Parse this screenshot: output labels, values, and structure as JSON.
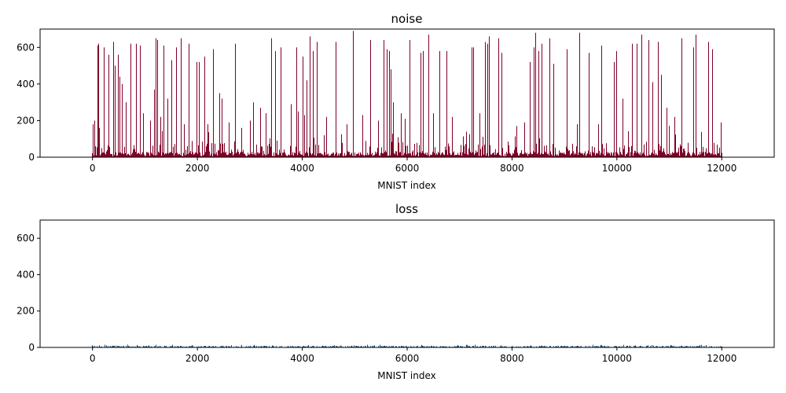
{
  "chart_data": [
    {
      "type": "bar",
      "title": "noise",
      "xlabel": "MNIST index",
      "ylabel": "",
      "xlim": [
        -1000,
        13000
      ],
      "ylim": [
        0,
        700
      ],
      "xticks": [
        0,
        2000,
        4000,
        6000,
        8000,
        10000,
        12000
      ],
      "xtick_labels": [
        "0",
        "2000",
        "4000",
        "6000",
        "8000",
        "10000",
        "12000"
      ],
      "yticks": [
        0,
        200,
        400,
        600
      ],
      "ytick_labels": [
        "0",
        "200",
        "400",
        "600"
      ],
      "grid": false,
      "color": "#7f0029",
      "n_points": 12000,
      "spikes": [
        {
          "x": 10,
          "y": 180
        },
        {
          "x": 30,
          "y": 200
        },
        {
          "x": 90,
          "y": 610
        },
        {
          "x": 110,
          "y": 620
        },
        {
          "x": 130,
          "y": 160
        },
        {
          "x": 210,
          "y": 600
        },
        {
          "x": 300,
          "y": 560
        },
        {
          "x": 400,
          "y": 630
        },
        {
          "x": 430,
          "y": 500
        },
        {
          "x": 480,
          "y": 560
        },
        {
          "x": 520,
          "y": 440
        },
        {
          "x": 560,
          "y": 400
        },
        {
          "x": 640,
          "y": 300
        },
        {
          "x": 730,
          "y": 620
        },
        {
          "x": 830,
          "y": 620
        },
        {
          "x": 900,
          "y": 610
        },
        {
          "x": 970,
          "y": 240
        },
        {
          "x": 1100,
          "y": 200
        },
        {
          "x": 1180,
          "y": 370
        },
        {
          "x": 1200,
          "y": 650
        },
        {
          "x": 1240,
          "y": 640
        },
        {
          "x": 1300,
          "y": 220
        },
        {
          "x": 1350,
          "y": 610
        },
        {
          "x": 1430,
          "y": 320
        },
        {
          "x": 1500,
          "y": 530
        },
        {
          "x": 1600,
          "y": 600
        },
        {
          "x": 1680,
          "y": 650
        },
        {
          "x": 1750,
          "y": 180
        },
        {
          "x": 1840,
          "y": 620
        },
        {
          "x": 1980,
          "y": 520
        },
        {
          "x": 2030,
          "y": 520
        },
        {
          "x": 2130,
          "y": 550
        },
        {
          "x": 2200,
          "y": 180
        },
        {
          "x": 2300,
          "y": 590
        },
        {
          "x": 2420,
          "y": 350
        },
        {
          "x": 2460,
          "y": 320
        },
        {
          "x": 2600,
          "y": 190
        },
        {
          "x": 2710,
          "y": 620
        },
        {
          "x": 2840,
          "y": 160
        },
        {
          "x": 3000,
          "y": 200
        },
        {
          "x": 3060,
          "y": 300
        },
        {
          "x": 3200,
          "y": 270
        },
        {
          "x": 3300,
          "y": 240
        },
        {
          "x": 3400,
          "y": 650
        },
        {
          "x": 3480,
          "y": 580
        },
        {
          "x": 3580,
          "y": 600
        },
        {
          "x": 3780,
          "y": 290
        },
        {
          "x": 3880,
          "y": 600
        },
        {
          "x": 3920,
          "y": 250
        },
        {
          "x": 4000,
          "y": 550
        },
        {
          "x": 4040,
          "y": 230
        },
        {
          "x": 4080,
          "y": 420
        },
        {
          "x": 4140,
          "y": 660
        },
        {
          "x": 4200,
          "y": 580
        },
        {
          "x": 4280,
          "y": 630
        },
        {
          "x": 4450,
          "y": 220
        },
        {
          "x": 4640,
          "y": 630
        },
        {
          "x": 4840,
          "y": 180
        },
        {
          "x": 4960,
          "y": 690
        },
        {
          "x": 5150,
          "y": 230
        },
        {
          "x": 5300,
          "y": 640
        },
        {
          "x": 5450,
          "y": 200
        },
        {
          "x": 5550,
          "y": 640
        },
        {
          "x": 5610,
          "y": 590
        },
        {
          "x": 5650,
          "y": 580
        },
        {
          "x": 5690,
          "y": 480
        },
        {
          "x": 5730,
          "y": 300
        },
        {
          "x": 5880,
          "y": 240
        },
        {
          "x": 5950,
          "y": 210
        },
        {
          "x": 6050,
          "y": 640
        },
        {
          "x": 6250,
          "y": 570
        },
        {
          "x": 6300,
          "y": 580
        },
        {
          "x": 6400,
          "y": 670
        },
        {
          "x": 6500,
          "y": 240
        },
        {
          "x": 6620,
          "y": 580
        },
        {
          "x": 6750,
          "y": 580
        },
        {
          "x": 6850,
          "y": 220
        },
        {
          "x": 7120,
          "y": 140
        },
        {
          "x": 7230,
          "y": 600
        },
        {
          "x": 7260,
          "y": 600
        },
        {
          "x": 7380,
          "y": 240
        },
        {
          "x": 7480,
          "y": 630
        },
        {
          "x": 7530,
          "y": 620
        },
        {
          "x": 7560,
          "y": 660
        },
        {
          "x": 7740,
          "y": 650
        },
        {
          "x": 7800,
          "y": 570
        },
        {
          "x": 8080,
          "y": 170
        },
        {
          "x": 8230,
          "y": 190
        },
        {
          "x": 8340,
          "y": 520
        },
        {
          "x": 8420,
          "y": 600
        },
        {
          "x": 8450,
          "y": 680
        },
        {
          "x": 8500,
          "y": 580
        },
        {
          "x": 8560,
          "y": 620
        },
        {
          "x": 8720,
          "y": 650
        },
        {
          "x": 8790,
          "y": 510
        },
        {
          "x": 9040,
          "y": 590
        },
        {
          "x": 9240,
          "y": 180
        },
        {
          "x": 9280,
          "y": 680
        },
        {
          "x": 9470,
          "y": 570
        },
        {
          "x": 9640,
          "y": 180
        },
        {
          "x": 9700,
          "y": 610
        },
        {
          "x": 9940,
          "y": 520
        },
        {
          "x": 9990,
          "y": 580
        },
        {
          "x": 10110,
          "y": 320
        },
        {
          "x": 10280,
          "y": 620
        },
        {
          "x": 10380,
          "y": 620
        },
        {
          "x": 10470,
          "y": 670
        },
        {
          "x": 10600,
          "y": 640
        },
        {
          "x": 10680,
          "y": 410
        },
        {
          "x": 10780,
          "y": 630
        },
        {
          "x": 10840,
          "y": 450
        },
        {
          "x": 10940,
          "y": 270
        },
        {
          "x": 11100,
          "y": 220
        },
        {
          "x": 11230,
          "y": 650
        },
        {
          "x": 11450,
          "y": 600
        },
        {
          "x": 11500,
          "y": 670
        },
        {
          "x": 11740,
          "y": 630
        },
        {
          "x": 11810,
          "y": 590
        },
        {
          "x": 11980,
          "y": 190
        }
      ]
    },
    {
      "type": "bar",
      "title": "loss",
      "xlabel": "MNIST index",
      "ylabel": "",
      "xlim": [
        -1000,
        13000
      ],
      "ylim": [
        0,
        700
      ],
      "xticks": [
        0,
        2000,
        4000,
        6000,
        8000,
        10000,
        12000
      ],
      "xtick_labels": [
        "0",
        "2000",
        "4000",
        "6000",
        "8000",
        "10000",
        "12000"
      ],
      "yticks": [
        0,
        200,
        400,
        600
      ],
      "ytick_labels": [
        "0",
        "200",
        "400",
        "600"
      ],
      "grid": false,
      "color": "#1f4e79",
      "n_points": 12000,
      "value_range": [
        0,
        15
      ]
    }
  ]
}
